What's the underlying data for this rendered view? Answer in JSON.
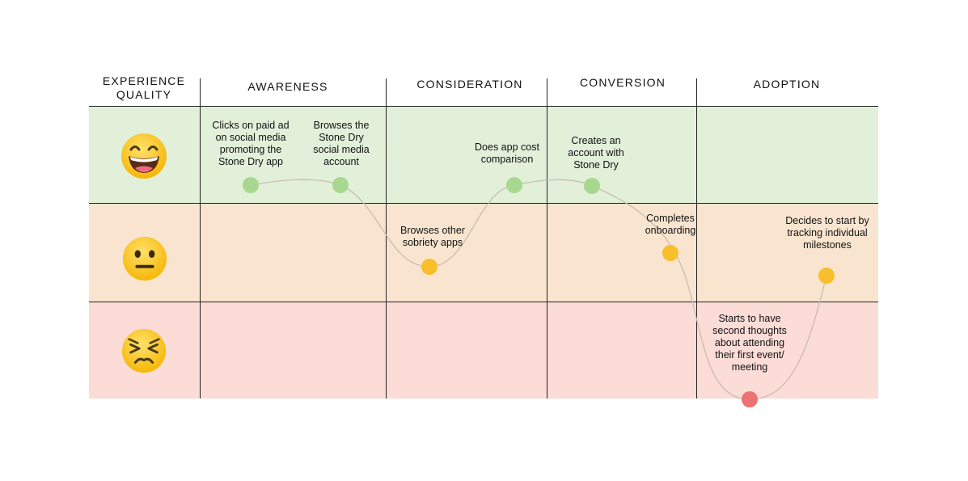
{
  "headers": {
    "experience_quality": "EXPERIENCE QUALITY",
    "awareness": "AWARENESS",
    "consideration": "CONSIDERATION",
    "conversion": "CONVERSION",
    "adoption": "ADOPTION"
  },
  "rows": [
    {
      "name": "happy",
      "icon": "grinning-face-icon",
      "color": "#e2f0da"
    },
    {
      "name": "neutral",
      "icon": "neutral-face-icon",
      "color": "#f9e5cf"
    },
    {
      "name": "sad",
      "icon": "persevering-face-icon",
      "color": "#fcdcd6"
    }
  ],
  "steps": [
    {
      "text": "Clicks on paid ad on social media promoting the Stone Dry app",
      "stage": "awareness",
      "sentiment": "happy",
      "color": "#a8d88f"
    },
    {
      "text": "Browses the Stone Dry social media account",
      "stage": "awareness",
      "sentiment": "happy",
      "color": "#a8d88f"
    },
    {
      "text": "Browses other sobriety apps",
      "stage": "consideration",
      "sentiment": "neutral",
      "color": "#f6bf2b"
    },
    {
      "text": "Does app cost comparison",
      "stage": "consideration",
      "sentiment": "happy",
      "color": "#a8d88f"
    },
    {
      "text": "Creates an account with Stone Dry",
      "stage": "conversion",
      "sentiment": "happy",
      "color": "#a8d88f"
    },
    {
      "text": "Completes onboarding",
      "stage": "conversion",
      "sentiment": "neutral",
      "color": "#f6bf2b"
    },
    {
      "text": "Starts to have second thoughts about attending their first event/ meeting",
      "stage": "adoption",
      "sentiment": "sad",
      "color": "#ec7273"
    },
    {
      "text": "Decides to start by tracking individual milestones",
      "stage": "adoption",
      "sentiment": "neutral",
      "color": "#f6bf2b"
    }
  ],
  "colors": {
    "positive": "#a8d88f",
    "neutral": "#f6bf2b",
    "negative": "#ec7273",
    "curve": "#c9bcae"
  }
}
